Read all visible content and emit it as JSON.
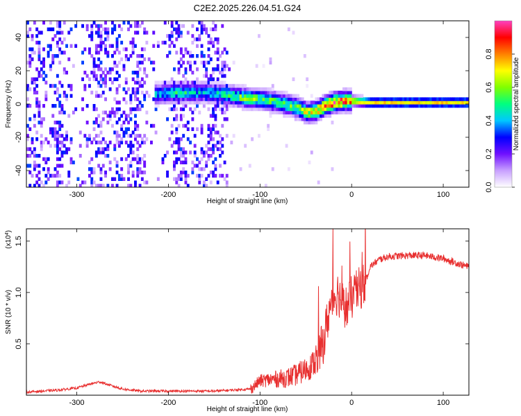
{
  "title": "C2E2.2025.226.04.51.G24",
  "chart_data": [
    {
      "type": "heatmap",
      "panel": "spectrogram",
      "xlabel": "Height of straight line (km)",
      "ylabel": "Frequency (Hz)",
      "xlim": [
        -355,
        128
      ],
      "ylim": [
        -50,
        50
      ],
      "xticks": [
        -300,
        -200,
        -100,
        0,
        100
      ],
      "yticks": [
        -40,
        -20,
        0,
        20,
        40
      ],
      "colorbar": {
        "label": "Normalized spectral amplitude",
        "range": [
          0,
          1
        ],
        "ticks": [
          0.0,
          0.2,
          0.4,
          0.6,
          0.8
        ],
        "colors": [
          "#ffffff",
          "#c8a0ff",
          "#7010ff",
          "#0000ff",
          "#00c8ff",
          "#00ff80",
          "#80ff00",
          "#ffff00",
          "#ff8000",
          "#ff0000",
          "#ff40c0"
        ]
      },
      "noise_region": {
        "x_start": -355,
        "x_end": -135,
        "amplitude": 0.25
      },
      "ridge": {
        "x": [
          -215,
          -190,
          -160,
          -140,
          -120,
          -100,
          -80,
          -60,
          -50,
          -40,
          -30,
          -20,
          -10,
          0,
          20,
          60,
          100,
          128
        ],
        "frequency": [
          5,
          6,
          6,
          5,
          3,
          2,
          0,
          -3,
          -6,
          -5,
          -2,
          0,
          1,
          1,
          0,
          0,
          0,
          0
        ],
        "amplitude": [
          0.4,
          0.45,
          0.4,
          0.45,
          0.55,
          0.55,
          0.5,
          0.55,
          0.65,
          0.7,
          0.8,
          0.85,
          0.8,
          0.75,
          0.7,
          0.72,
          0.72,
          0.72
        ]
      }
    },
    {
      "type": "line",
      "panel": "snr",
      "xlabel": "Height of straight line (km)",
      "ylabel": "SNR (10 * v/v)",
      "y_multiplier": "(x10^4)",
      "xlim": [
        -355,
        128
      ],
      "ylim": [
        0,
        1.62
      ],
      "xticks": [
        -300,
        -200,
        -100,
        0,
        100
      ],
      "yticks": [
        0.5,
        1.0,
        1.5
      ],
      "ytick_labels": [
        "0.5",
        "1.0",
        "1.5"
      ],
      "line_color": "#e83030",
      "series": [
        {
          "x": [
            -355,
            -320,
            -300,
            -285,
            -275,
            -265,
            -250,
            -230,
            -200,
            -170,
            -150,
            -130,
            -110,
            -100,
            -90,
            -80,
            -70,
            -60,
            -50,
            -45,
            -40,
            -35,
            -30,
            -25,
            -20,
            -15,
            -10,
            -5,
            0,
            5,
            10,
            15,
            20,
            30,
            40,
            60,
            80,
            100,
            110,
            120,
            128
          ],
          "y": [
            0.03,
            0.05,
            0.07,
            0.11,
            0.13,
            0.1,
            0.06,
            0.04,
            0.04,
            0.04,
            0.04,
            0.05,
            0.06,
            0.14,
            0.15,
            0.16,
            0.17,
            0.2,
            0.25,
            0.28,
            0.33,
            0.4,
            0.55,
            0.8,
            0.95,
            1.0,
            0.9,
            0.85,
            0.95,
            1.0,
            1.05,
            1.1,
            1.25,
            1.32,
            1.35,
            1.36,
            1.36,
            1.33,
            1.3,
            1.27,
            1.25
          ]
        }
      ]
    }
  ]
}
